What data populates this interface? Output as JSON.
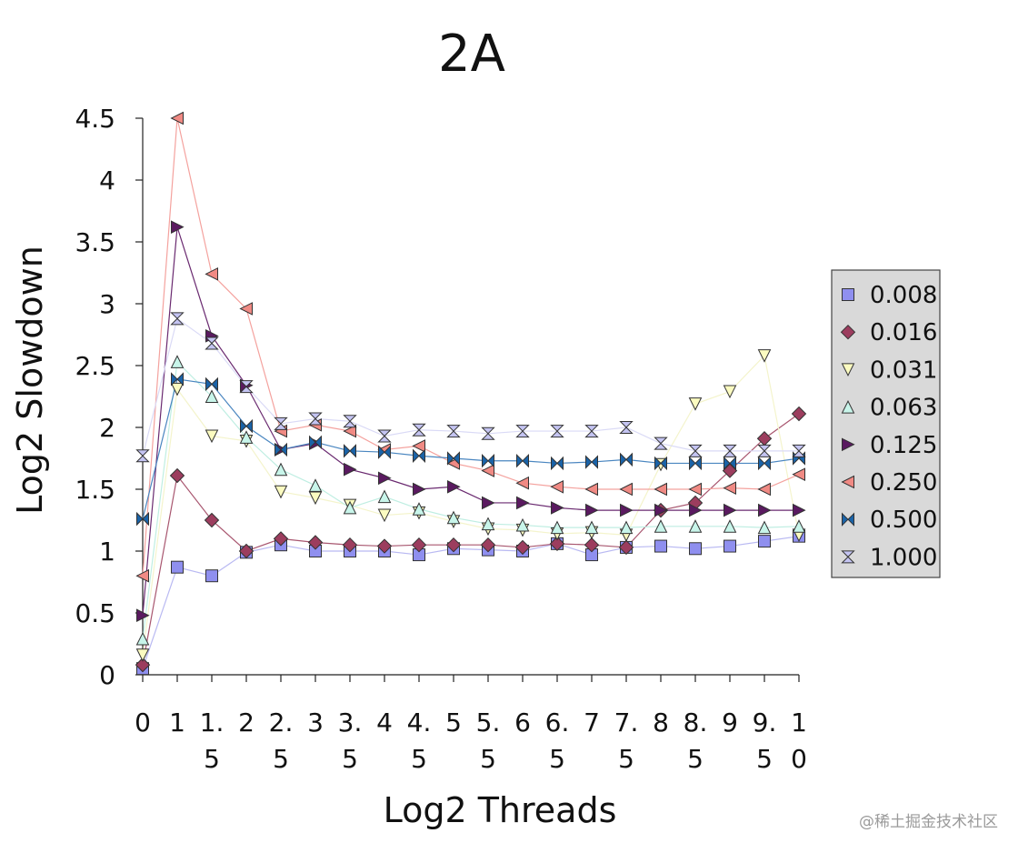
{
  "chart_data": {
    "type": "line",
    "title": "2A",
    "xlabel": "Log2 Threads",
    "ylabel": "Log2 Slowdown",
    "ylim": [
      0,
      4.5
    ],
    "yticks": [
      "0",
      "0.5",
      "1",
      "1.5",
      "2",
      "2.5",
      "3",
      "3.5",
      "4",
      "4.5"
    ],
    "x": [
      0,
      1,
      1.5,
      2,
      2.5,
      3,
      3.5,
      4,
      4.5,
      5,
      5.5,
      6,
      6.5,
      7,
      7.5,
      8,
      8.5,
      9,
      9.5,
      10
    ],
    "xtick_labels": [
      [
        "0"
      ],
      [
        "1"
      ],
      [
        "1.",
        "5"
      ],
      [
        "2"
      ],
      [
        "2.",
        "5"
      ],
      [
        "3"
      ],
      [
        "3.",
        "5"
      ],
      [
        "4"
      ],
      [
        "4.",
        "5"
      ],
      [
        "5"
      ],
      [
        "5.",
        "5"
      ],
      [
        "6"
      ],
      [
        "6.",
        "5"
      ],
      [
        "7"
      ],
      [
        "7.",
        "5"
      ],
      [
        "8"
      ],
      [
        "8.",
        "5"
      ],
      [
        "9"
      ],
      [
        "9.",
        "5"
      ],
      [
        "1",
        "0"
      ]
    ],
    "legend_position": "right",
    "grid": false,
    "series": [
      {
        "name": "0.008",
        "marker": "square",
        "color": "#8f8fef",
        "line": "#b9b9f2",
        "values": [
          0.05,
          0.87,
          0.8,
          0.99,
          1.05,
          1.0,
          1.0,
          1.0,
          0.97,
          1.02,
          1.01,
          1.0,
          1.06,
          0.97,
          1.03,
          1.04,
          1.02,
          1.04,
          1.08,
          1.12
        ]
      },
      {
        "name": "0.016",
        "marker": "diamond",
        "color": "#9c3d5e",
        "line": "#a8566f",
        "values": [
          0.08,
          1.61,
          1.25,
          1.0,
          1.1,
          1.07,
          1.05,
          1.04,
          1.05,
          1.05,
          1.05,
          1.03,
          1.06,
          1.05,
          1.03,
          1.33,
          1.39,
          1.65,
          1.91,
          2.11
        ]
      },
      {
        "name": "0.031",
        "marker": "triangle-down",
        "color": "#fbfbc0",
        "line": "#f4f4cc",
        "values": [
          0.16,
          2.31,
          1.93,
          1.89,
          1.48,
          1.43,
          1.37,
          1.29,
          1.31,
          1.24,
          1.18,
          1.17,
          1.14,
          1.15,
          1.13,
          1.7,
          2.19,
          2.29,
          2.58,
          1.13
        ]
      },
      {
        "name": "0.063",
        "marker": "triangle-up",
        "color": "#c8f5ea",
        "line": "#bfeee2",
        "values": [
          0.29,
          2.53,
          2.25,
          1.92,
          1.66,
          1.53,
          1.35,
          1.44,
          1.34,
          1.27,
          1.22,
          1.21,
          1.19,
          1.19,
          1.19,
          1.2,
          1.2,
          1.2,
          1.19,
          1.2
        ]
      },
      {
        "name": "0.125",
        "marker": "triangle-right",
        "color": "#5a1a60",
        "line": "#6a2a70",
        "values": [
          0.48,
          3.62,
          2.74,
          2.34,
          1.82,
          1.87,
          1.66,
          1.59,
          1.5,
          1.52,
          1.39,
          1.39,
          1.35,
          1.33,
          1.33,
          1.33,
          1.33,
          1.33,
          1.33,
          1.33
        ]
      },
      {
        "name": "0.250",
        "marker": "triangle-left",
        "color": "#f08a84",
        "line": "#f4a29e",
        "values": [
          0.8,
          4.5,
          3.24,
          2.96,
          1.97,
          2.02,
          1.97,
          1.82,
          1.85,
          1.71,
          1.65,
          1.55,
          1.52,
          1.5,
          1.5,
          1.5,
          1.5,
          1.51,
          1.5,
          1.62
        ]
      },
      {
        "name": "0.500",
        "marker": "bowtie",
        "color": "#1a63a8",
        "line": "#4a86c0",
        "values": [
          1.26,
          2.39,
          2.35,
          2.01,
          1.82,
          1.88,
          1.81,
          1.8,
          1.77,
          1.75,
          1.73,
          1.73,
          1.71,
          1.72,
          1.74,
          1.71,
          1.71,
          1.71,
          1.71,
          1.75
        ]
      },
      {
        "name": "1.000",
        "marker": "hourglass",
        "color": "#c4c4f2",
        "line": "#dadaf6",
        "values": [
          1.77,
          2.88,
          2.68,
          2.33,
          2.03,
          2.07,
          2.05,
          1.93,
          1.98,
          1.97,
          1.95,
          1.97,
          1.97,
          1.97,
          2.0,
          1.87,
          1.81,
          1.81,
          1.81,
          1.81
        ]
      }
    ]
  },
  "watermark": "@稀土掘金技术社区"
}
